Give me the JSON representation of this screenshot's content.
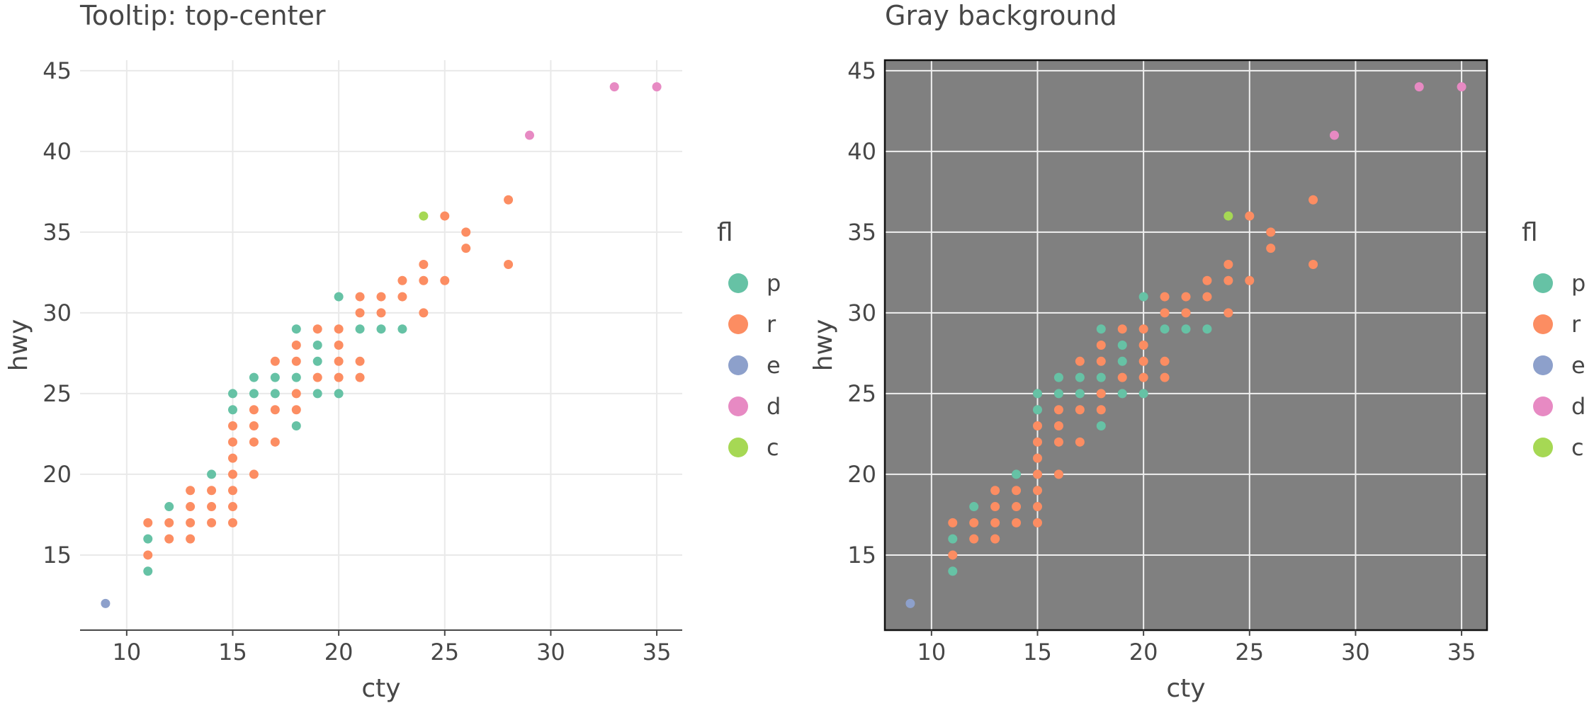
{
  "colors": {
    "p": "#66c2a5",
    "r": "#fc8d62",
    "e": "#8da0cb",
    "d": "#e78ac3",
    "c": "#a6d854",
    "gray_panel": "#808080",
    "grid_light": "#e9e9e9",
    "grid_on_gray": "#f0f0f0",
    "axis_line": "#474747"
  },
  "chart_data": [
    {
      "type": "scatter",
      "title": "Tooltip: top-center",
      "xlabel": "cty",
      "ylabel": "hwy",
      "xlim": [
        7.8,
        36.2
      ],
      "ylim": [
        10.35,
        45.65
      ],
      "xticks": [
        10,
        15,
        20,
        25,
        30,
        35
      ],
      "yticks": [
        15,
        20,
        25,
        30,
        35,
        40,
        45
      ],
      "grid": true,
      "background": "white",
      "legend": {
        "title": "fl",
        "position": "right",
        "entries": [
          "p",
          "r",
          "e",
          "d",
          "c"
        ]
      }
    },
    {
      "type": "scatter",
      "title": "Gray background",
      "xlabel": "cty",
      "ylabel": "hwy",
      "xlim": [
        7.8,
        36.2
      ],
      "ylim": [
        10.35,
        45.65
      ],
      "xticks": [
        10,
        15,
        20,
        25,
        30,
        35
      ],
      "yticks": [
        15,
        20,
        25,
        30,
        35,
        40,
        45
      ],
      "grid": true,
      "background": "gray",
      "legend": {
        "title": "fl",
        "position": "right",
        "entries": [
          "p",
          "r",
          "e",
          "d",
          "c"
        ]
      }
    }
  ],
  "points": [
    {
      "x": 9,
      "y": 12,
      "fl": "e"
    },
    {
      "x": 11,
      "y": 14,
      "fl": "p"
    },
    {
      "x": 11,
      "y": 15,
      "fl": "r"
    },
    {
      "x": 11,
      "y": 16,
      "fl": "p"
    },
    {
      "x": 11,
      "y": 17,
      "fl": "r"
    },
    {
      "x": 12,
      "y": 16,
      "fl": "r"
    },
    {
      "x": 12,
      "y": 17,
      "fl": "r"
    },
    {
      "x": 12,
      "y": 18,
      "fl": "p"
    },
    {
      "x": 13,
      "y": 16,
      "fl": "r"
    },
    {
      "x": 13,
      "y": 17,
      "fl": "r"
    },
    {
      "x": 13,
      "y": 18,
      "fl": "r"
    },
    {
      "x": 13,
      "y": 19,
      "fl": "r"
    },
    {
      "x": 14,
      "y": 17,
      "fl": "r"
    },
    {
      "x": 14,
      "y": 18,
      "fl": "r"
    },
    {
      "x": 14,
      "y": 19,
      "fl": "r"
    },
    {
      "x": 14,
      "y": 20,
      "fl": "p"
    },
    {
      "x": 15,
      "y": 17,
      "fl": "r"
    },
    {
      "x": 15,
      "y": 18,
      "fl": "r"
    },
    {
      "x": 15,
      "y": 19,
      "fl": "r"
    },
    {
      "x": 15,
      "y": 20,
      "fl": "r"
    },
    {
      "x": 15,
      "y": 21,
      "fl": "r"
    },
    {
      "x": 15,
      "y": 22,
      "fl": "r"
    },
    {
      "x": 15,
      "y": 23,
      "fl": "r"
    },
    {
      "x": 15,
      "y": 24,
      "fl": "p"
    },
    {
      "x": 15,
      "y": 25,
      "fl": "p"
    },
    {
      "x": 16,
      "y": 20,
      "fl": "r"
    },
    {
      "x": 16,
      "y": 22,
      "fl": "r"
    },
    {
      "x": 16,
      "y": 23,
      "fl": "r"
    },
    {
      "x": 16,
      "y": 24,
      "fl": "r"
    },
    {
      "x": 16,
      "y": 25,
      "fl": "p"
    },
    {
      "x": 16,
      "y": 26,
      "fl": "p"
    },
    {
      "x": 17,
      "y": 22,
      "fl": "r"
    },
    {
      "x": 17,
      "y": 24,
      "fl": "r"
    },
    {
      "x": 17,
      "y": 25,
      "fl": "p"
    },
    {
      "x": 17,
      "y": 26,
      "fl": "p"
    },
    {
      "x": 17,
      "y": 27,
      "fl": "r"
    },
    {
      "x": 18,
      "y": 23,
      "fl": "p"
    },
    {
      "x": 18,
      "y": 24,
      "fl": "r"
    },
    {
      "x": 18,
      "y": 25,
      "fl": "r"
    },
    {
      "x": 18,
      "y": 26,
      "fl": "p"
    },
    {
      "x": 18,
      "y": 27,
      "fl": "r"
    },
    {
      "x": 18,
      "y": 28,
      "fl": "r"
    },
    {
      "x": 18,
      "y": 29,
      "fl": "p"
    },
    {
      "x": 19,
      "y": 25,
      "fl": "p"
    },
    {
      "x": 19,
      "y": 26,
      "fl": "r"
    },
    {
      "x": 19,
      "y": 27,
      "fl": "p"
    },
    {
      "x": 19,
      "y": 28,
      "fl": "p"
    },
    {
      "x": 19,
      "y": 29,
      "fl": "r"
    },
    {
      "x": 20,
      "y": 25,
      "fl": "p"
    },
    {
      "x": 20,
      "y": 26,
      "fl": "r"
    },
    {
      "x": 20,
      "y": 27,
      "fl": "r"
    },
    {
      "x": 20,
      "y": 28,
      "fl": "r"
    },
    {
      "x": 20,
      "y": 29,
      "fl": "r"
    },
    {
      "x": 20,
      "y": 31,
      "fl": "p"
    },
    {
      "x": 21,
      "y": 26,
      "fl": "r"
    },
    {
      "x": 21,
      "y": 27,
      "fl": "r"
    },
    {
      "x": 21,
      "y": 29,
      "fl": "p"
    },
    {
      "x": 21,
      "y": 30,
      "fl": "r"
    },
    {
      "x": 21,
      "y": 31,
      "fl": "r"
    },
    {
      "x": 22,
      "y": 29,
      "fl": "p"
    },
    {
      "x": 22,
      "y": 30,
      "fl": "r"
    },
    {
      "x": 22,
      "y": 31,
      "fl": "r"
    },
    {
      "x": 23,
      "y": 29,
      "fl": "p"
    },
    {
      "x": 23,
      "y": 31,
      "fl": "r"
    },
    {
      "x": 23,
      "y": 32,
      "fl": "r"
    },
    {
      "x": 24,
      "y": 30,
      "fl": "r"
    },
    {
      "x": 24,
      "y": 32,
      "fl": "r"
    },
    {
      "x": 24,
      "y": 33,
      "fl": "r"
    },
    {
      "x": 24,
      "y": 36,
      "fl": "c"
    },
    {
      "x": 25,
      "y": 32,
      "fl": "r"
    },
    {
      "x": 25,
      "y": 36,
      "fl": "r"
    },
    {
      "x": 26,
      "y": 34,
      "fl": "r"
    },
    {
      "x": 26,
      "y": 35,
      "fl": "r"
    },
    {
      "x": 28,
      "y": 33,
      "fl": "r"
    },
    {
      "x": 28,
      "y": 37,
      "fl": "r"
    },
    {
      "x": 29,
      "y": 41,
      "fl": "d"
    },
    {
      "x": 33,
      "y": 44,
      "fl": "d"
    },
    {
      "x": 35,
      "y": 44,
      "fl": "d"
    }
  ]
}
